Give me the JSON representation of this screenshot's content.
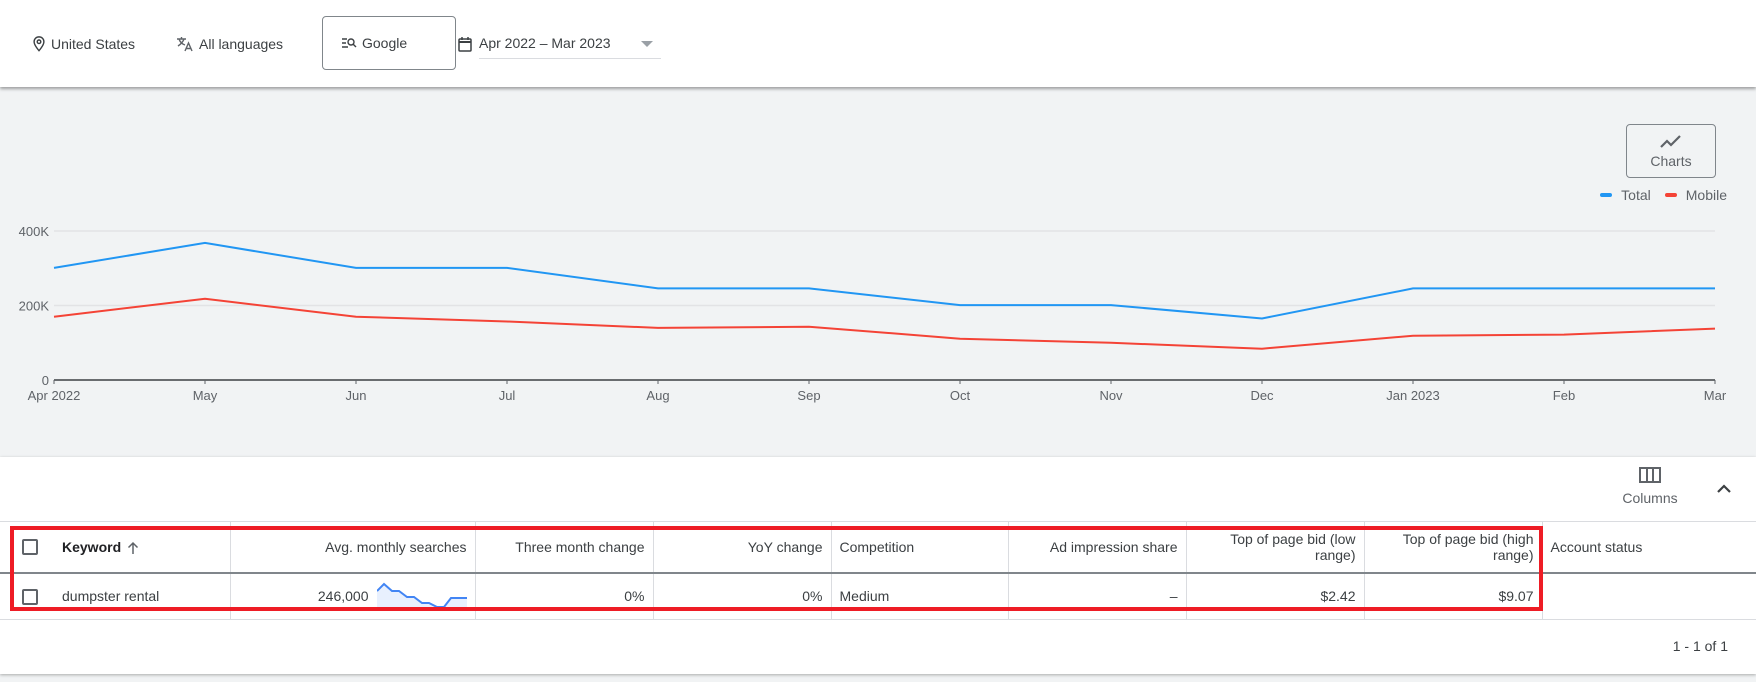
{
  "filters": {
    "location": "United States",
    "language": "All languages",
    "network": "Google",
    "date_range": "Apr 2022 – Mar 2023"
  },
  "icons": {
    "location": "location-pin-icon",
    "language": "translate-icon",
    "network": "search-network-icon",
    "date": "calendar-icon",
    "charts": "line-chart-icon",
    "columns": "columns-icon",
    "collapse": "chevron-up-icon",
    "sort": "arrow-up-icon"
  },
  "charts_button": {
    "label": "Charts"
  },
  "legend": [
    {
      "label": "Total",
      "color": "#2196f3"
    },
    {
      "label": "Mobile",
      "color": "#f44336"
    }
  ],
  "chart_data": {
    "type": "line",
    "title": "",
    "xlabel": "",
    "ylabel": "",
    "x": [
      "Apr 2022",
      "May",
      "Jun",
      "Jul",
      "Aug",
      "Sep",
      "Oct",
      "Nov",
      "Dec",
      "Jan 2023",
      "Feb",
      "Mar"
    ],
    "series": [
      {
        "name": "Total",
        "color": "#2196f3",
        "values": [
          301000,
          368000,
          301000,
          301000,
          246000,
          246000,
          201000,
          201000,
          165000,
          246000,
          246000,
          246000
        ]
      },
      {
        "name": "Mobile",
        "color": "#f44336",
        "values": [
          170000,
          218000,
          170000,
          157000,
          140000,
          143000,
          111000,
          100000,
          84000,
          119000,
          122000,
          138000
        ]
      }
    ],
    "y_ticks": [
      "0",
      "200K",
      "400K"
    ],
    "ylim": [
      0,
      450000
    ],
    "grid": true,
    "legend_position": "top-right"
  },
  "toolbar": {
    "columns_label": "Columns"
  },
  "table": {
    "headers": {
      "keyword": "Keyword",
      "avg_monthly": "Avg. monthly searches",
      "three_month": "Three month change",
      "yoy": "YoY change",
      "competition": "Competition",
      "ad_share": "Ad impression share",
      "bid_low": "Top of page bid (low range)",
      "bid_high": "Top of page bid (high range)",
      "account_status": "Account status"
    },
    "rows": [
      {
        "keyword": "dumpster rental",
        "avg_monthly": "246,000",
        "three_month": "0%",
        "yoy": "0%",
        "competition": "Medium",
        "ad_share": "–",
        "bid_low": "$2.42",
        "bid_high": "$9.07",
        "account_status": ""
      }
    ]
  },
  "pagination": {
    "label": "1 - 1 of 1"
  },
  "annotation": {
    "color": "#ee1c25"
  }
}
